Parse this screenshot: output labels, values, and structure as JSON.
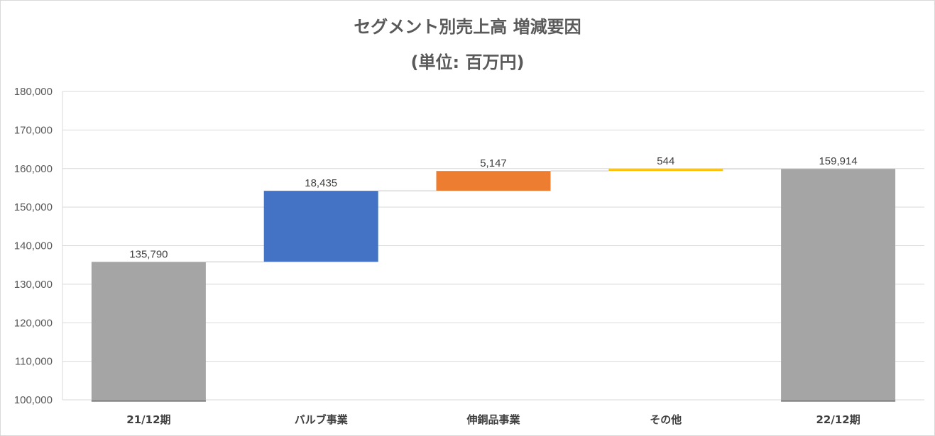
{
  "chart_data": {
    "type": "bar",
    "subtype": "waterfall",
    "title": "セグメント別売上高 増減要因",
    "subtitle": "(単位: 百万円)",
    "categories": [
      "21/12期",
      "バルブ事業",
      "伸銅品事業",
      "その他",
      "22/12期"
    ],
    "values": [
      135790,
      18435,
      5147,
      544,
      159914
    ],
    "kinds": [
      "total",
      "increase",
      "increase",
      "increase",
      "total"
    ],
    "data_labels": [
      "135,790",
      "18,435",
      "5,147",
      "544",
      "159,914"
    ],
    "colors": [
      "#a5a5a5",
      "#4472c4",
      "#ed7d31",
      "#ffc000",
      "#a5a5a5"
    ],
    "ylim": [
      100000,
      180000
    ],
    "y_ticks": [
      100000,
      110000,
      120000,
      130000,
      140000,
      150000,
      160000,
      170000,
      180000
    ],
    "y_tick_labels": [
      "100,000",
      "110,000",
      "120,000",
      "130,000",
      "140,000",
      "150,000",
      "160,000",
      "170,000",
      "180,000"
    ],
    "grid": true,
    "connector_color": "#d9d9d9",
    "gridline_color": "#d9d9d9"
  }
}
